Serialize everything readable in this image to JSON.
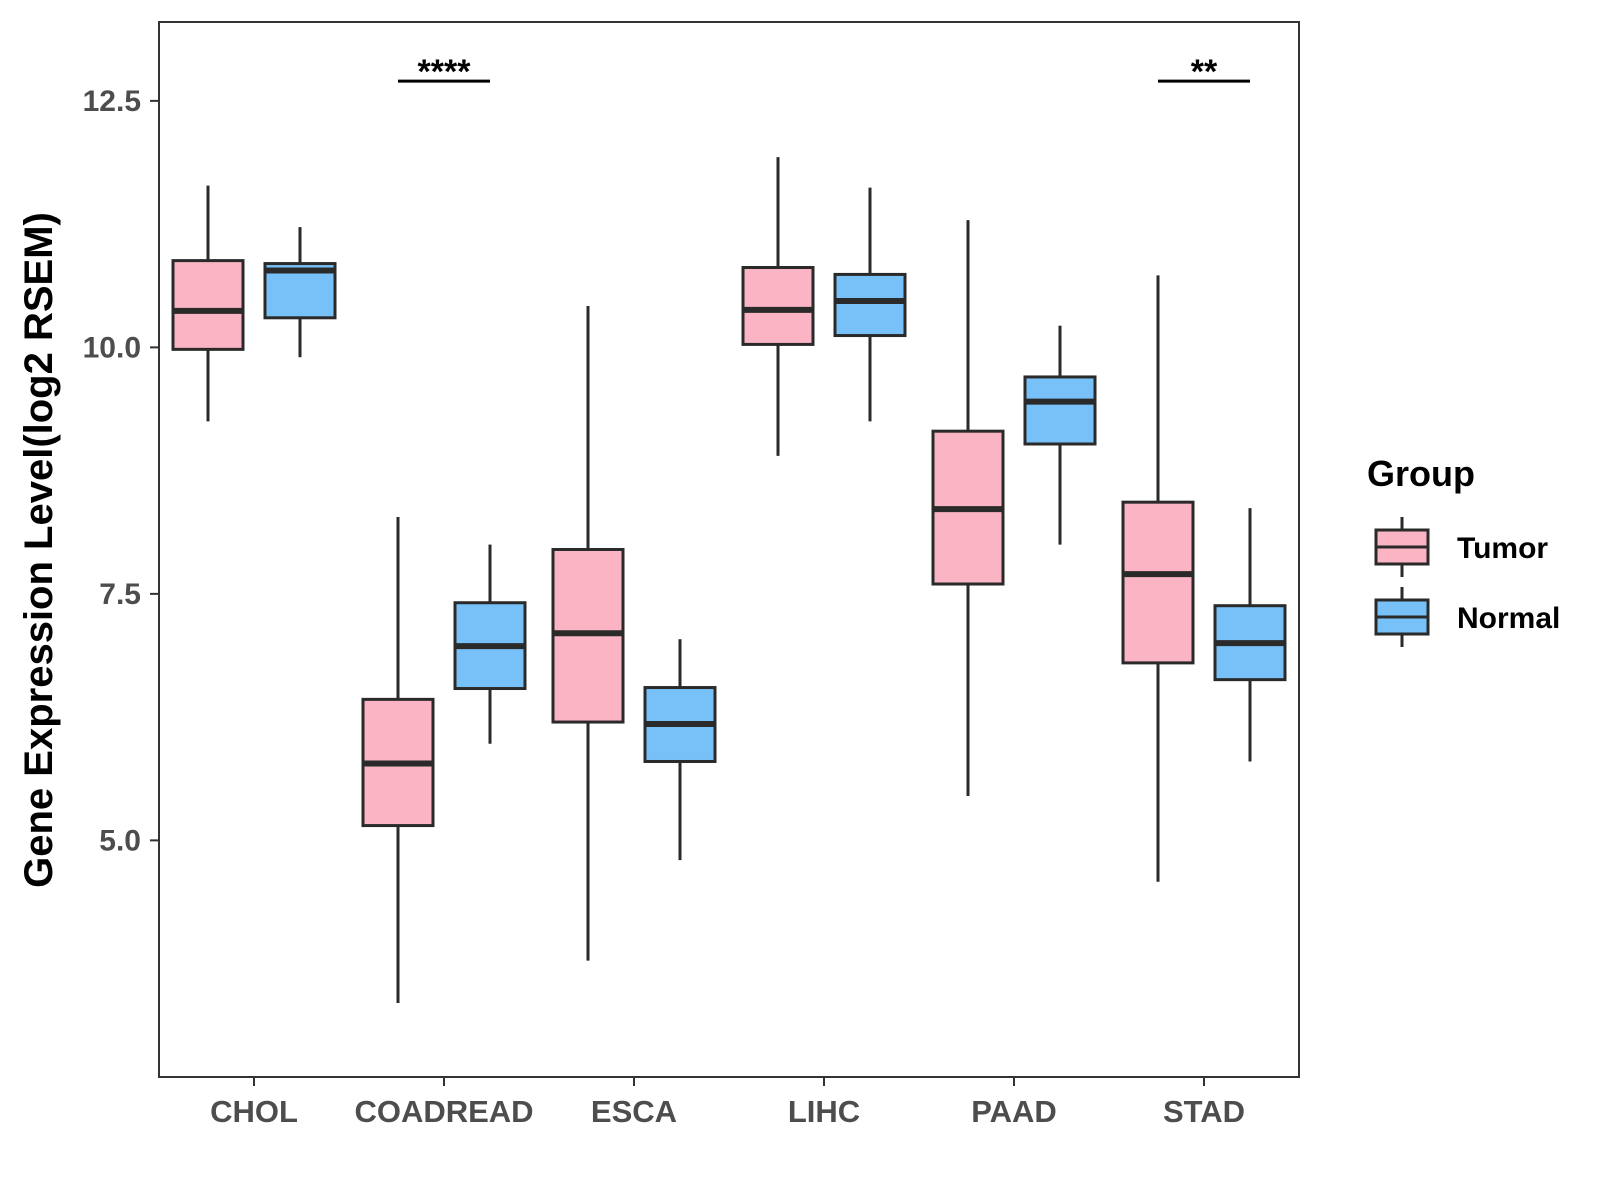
{
  "chart_data": {
    "type": "boxplot",
    "title": "",
    "xlabel": "",
    "ylabel": "Gene Expression Level(log2 RSEM)",
    "ylim": [
      2.6,
      13.3
    ],
    "yticks": [
      "5.0",
      "7.5",
      "10.0",
      "12.5"
    ],
    "ytick_values": [
      5.0,
      7.5,
      10.0,
      12.5
    ],
    "categories": [
      "CHOL",
      "COADREAD",
      "ESCA",
      "LIHC",
      "PAAD",
      "STAD"
    ],
    "legend": {
      "title": "Group",
      "position": "right"
    },
    "series": [
      {
        "name": "Tumor",
        "color": "#FBB4C4",
        "boxes": [
          {
            "min": 9.25,
            "q1": 9.98,
            "median": 10.37,
            "q3": 10.88,
            "max": 11.64
          },
          {
            "min": 3.35,
            "q1": 5.15,
            "median": 5.78,
            "q3": 6.43,
            "max": 8.28
          },
          {
            "min": 3.78,
            "q1": 6.2,
            "median": 7.1,
            "q3": 7.95,
            "max": 10.42
          },
          {
            "min": 8.9,
            "q1": 10.03,
            "median": 10.38,
            "q3": 10.81,
            "max": 11.93
          },
          {
            "min": 5.45,
            "q1": 7.6,
            "median": 8.36,
            "q3": 9.15,
            "max": 11.29
          },
          {
            "min": 4.58,
            "q1": 6.8,
            "median": 7.7,
            "q3": 8.43,
            "max": 10.73
          }
        ]
      },
      {
        "name": "Normal",
        "color": "#77C1F8",
        "boxes": [
          {
            "min": 9.9,
            "q1": 10.3,
            "median": 10.78,
            "q3": 10.85,
            "max": 11.22
          },
          {
            "min": 5.98,
            "q1": 6.54,
            "median": 6.97,
            "q3": 7.41,
            "max": 8.0
          },
          {
            "min": 4.8,
            "q1": 5.8,
            "median": 6.18,
            "q3": 6.55,
            "max": 7.04
          },
          {
            "min": 9.25,
            "q1": 10.12,
            "median": 10.47,
            "q3": 10.74,
            "max": 11.62
          },
          {
            "min": 8.0,
            "q1": 9.02,
            "median": 9.45,
            "q3": 9.7,
            "max": 10.22
          },
          {
            "min": 5.8,
            "q1": 6.63,
            "median": 7.0,
            "q3": 7.38,
            "max": 8.37
          }
        ]
      }
    ],
    "significance": [
      {
        "category": "COADREAD",
        "label": "****",
        "y": 12.7
      },
      {
        "category": "STAD",
        "label": "**",
        "y": 12.7
      }
    ]
  }
}
